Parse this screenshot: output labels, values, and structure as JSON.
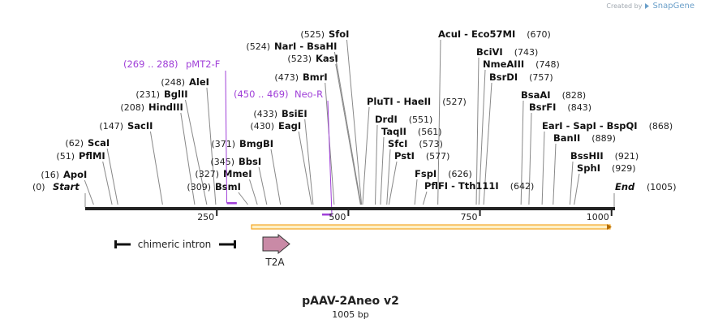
{
  "credit": {
    "prefix": "Created by",
    "brand": "SnapGene",
    "icon": "snapgene-logo-icon"
  },
  "plasmid": {
    "name": "pAAV-2Aneo v2",
    "length_label": "1005 bp",
    "length": 1005
  },
  "ticks": [
    {
      "pos": 250,
      "label": "250"
    },
    {
      "pos": 500,
      "label": "500"
    },
    {
      "pos": 750,
      "label": "750"
    },
    {
      "pos": 1000,
      "label": "1000"
    }
  ],
  "ends": {
    "start_label": "Start",
    "start_pos": "(0)",
    "end_label": "End",
    "end_pos": "(1005)"
  },
  "sites": [
    {
      "pos": 16,
      "pos_label": "(16)",
      "enzymes": [
        "ApoI"
      ]
    },
    {
      "pos": 51,
      "pos_label": "(51)",
      "enzymes": [
        "PflMI"
      ]
    },
    {
      "pos": 62,
      "pos_label": "(62)",
      "enzymes": [
        "ScaI"
      ]
    },
    {
      "pos": 147,
      "pos_label": "(147)",
      "enzymes": [
        "SacII"
      ]
    },
    {
      "pos": 208,
      "pos_label": "(208)",
      "enzymes": [
        "HindIII"
      ]
    },
    {
      "pos": 231,
      "pos_label": "(231)",
      "enzymes": [
        "BglII"
      ]
    },
    {
      "pos": 248,
      "pos_label": "(248)",
      "enzymes": [
        "AleI"
      ]
    },
    {
      "pos": 309,
      "pos_label": "(309)",
      "enzymes": [
        "BsmI"
      ]
    },
    {
      "pos": 327,
      "pos_label": "(327)",
      "enzymes": [
        "MmeI"
      ]
    },
    {
      "pos": 345,
      "pos_label": "(345)",
      "enzymes": [
        "BbsI"
      ]
    },
    {
      "pos": 371,
      "pos_label": "(371)",
      "enzymes": [
        "BmgBI"
      ]
    },
    {
      "pos": 430,
      "pos_label": "(430)",
      "enzymes": [
        "EagI"
      ]
    },
    {
      "pos": 433,
      "pos_label": "(433)",
      "enzymes": [
        "BsiEI"
      ]
    },
    {
      "pos": 473,
      "pos_label": "(473)",
      "enzymes": [
        "BmrI"
      ]
    },
    {
      "pos": 523,
      "pos_label": "(523)",
      "enzymes": [
        "KasI"
      ]
    },
    {
      "pos": 524,
      "pos_label": "(524)",
      "enzymes": [
        "NarI",
        "BsaHI"
      ]
    },
    {
      "pos": 525,
      "pos_label": "(525)",
      "enzymes": [
        "SfoI"
      ]
    },
    {
      "pos": 527,
      "pos_label": "(527)",
      "enzymes": [
        "PluTI",
        "HaeII"
      ]
    },
    {
      "pos": 551,
      "pos_label": "(551)",
      "enzymes": [
        "DrdI"
      ]
    },
    {
      "pos": 561,
      "pos_label": "(561)",
      "enzymes": [
        "TaqII"
      ]
    },
    {
      "pos": 573,
      "pos_label": "(573)",
      "enzymes": [
        "SfcI"
      ]
    },
    {
      "pos": 577,
      "pos_label": "(577)",
      "enzymes": [
        "PstI"
      ]
    },
    {
      "pos": 626,
      "pos_label": "(626)",
      "enzymes": [
        "FspI"
      ]
    },
    {
      "pos": 642,
      "pos_label": "(642)",
      "enzymes": [
        "PflFI",
        "Tth111I"
      ]
    },
    {
      "pos": 670,
      "pos_label": "(670)",
      "enzymes": [
        "AcuI",
        "Eco57MI"
      ]
    },
    {
      "pos": 743,
      "pos_label": "(743)",
      "enzymes": [
        "BciVI"
      ]
    },
    {
      "pos": 748,
      "pos_label": "(748)",
      "enzymes": [
        "NmeAIII"
      ]
    },
    {
      "pos": 757,
      "pos_label": "(757)",
      "enzymes": [
        "BsrDI"
      ]
    },
    {
      "pos": 828,
      "pos_label": "(828)",
      "enzymes": [
        "BsaAI"
      ]
    },
    {
      "pos": 843,
      "pos_label": "(843)",
      "enzymes": [
        "BsrFI"
      ]
    },
    {
      "pos": 868,
      "pos_label": "(868)",
      "enzymes": [
        "EarI",
        "SapI",
        "BspQI"
      ]
    },
    {
      "pos": 889,
      "pos_label": "(889)",
      "enzymes": [
        "BanII"
      ]
    },
    {
      "pos": 921,
      "pos_label": "(921)",
      "enzymes": [
        "BssHII"
      ]
    },
    {
      "pos": 929,
      "pos_label": "(929)",
      "enzymes": [
        "SphI"
      ]
    }
  ],
  "primers": [
    {
      "range": "(269 .. 288)",
      "name": "pMT2-F",
      "start": 269,
      "end": 288,
      "direction": "forward"
    },
    {
      "range": "(450 .. 469)",
      "name": "Neo-R",
      "start": 450,
      "end": 469,
      "direction": "reverse"
    }
  ],
  "features": [
    {
      "name": "chimeric intron",
      "type": "intron",
      "start": 133,
      "end": 265
    },
    {
      "name": "T2A",
      "type": "cds",
      "start": 336,
      "end": 390
    },
    {
      "name": "",
      "type": "orf",
      "start": 304,
      "end": 1005,
      "color": "#f5a623"
    }
  ],
  "colors": {
    "primer": "#a040d8",
    "backbone": "#222222",
    "orf": "#f5a623",
    "orf_fill": "#fdf0c8",
    "t2a": "#c98aa6"
  }
}
